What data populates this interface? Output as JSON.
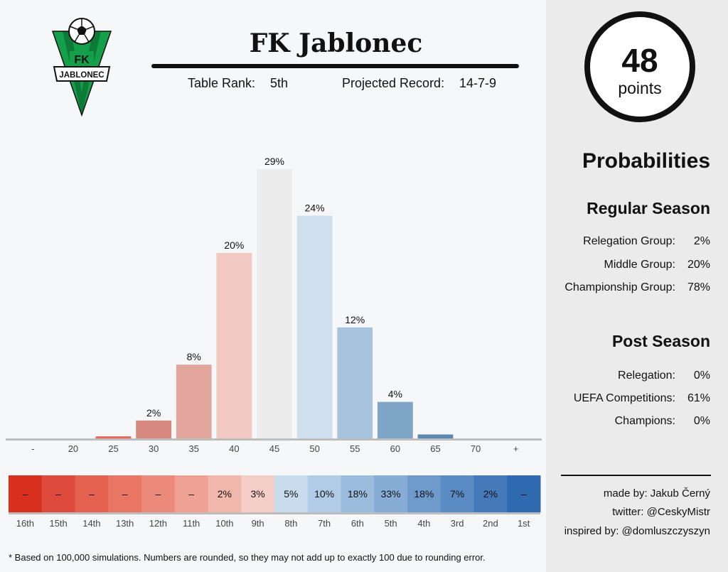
{
  "header": {
    "team_name": "FK Jablonec",
    "rank_label": "Table Rank:",
    "rank_value": "5th",
    "record_label": "Projected Record:",
    "record_value": "14-7-9"
  },
  "logo": {
    "text_top": "FK",
    "text_band": "JABLONEC",
    "colors": {
      "green": "#14a04a",
      "black": "#111111"
    }
  },
  "points": {
    "value": "48",
    "label": "points"
  },
  "probabilities": {
    "title": "Probabilities",
    "regular_season": {
      "title": "Regular Season",
      "rows": [
        {
          "label": "Relegation Group:",
          "value": "2%"
        },
        {
          "label": "Middle Group:",
          "value": "20%"
        },
        {
          "label": "Championship Group:",
          "value": "78%"
        }
      ]
    },
    "post_season": {
      "title": "Post Season",
      "rows": [
        {
          "label": "Relegation:",
          "value": "0%"
        },
        {
          "label": "UEFA Competitions:",
          "value": "61%"
        },
        {
          "label": "Champions:",
          "value": "0%"
        }
      ]
    }
  },
  "credits": {
    "made_by": "made by: Jakub Černý",
    "twitter": "twitter: @CeskyMistr",
    "inspired_by": "inspired by: @domluszczyszyn"
  },
  "footnote": "* Based on 100,000 simulations. Numbers are rounded, so they may not add up to exactly 100 due to rounding error.",
  "chart_data": [
    {
      "type": "bar",
      "categories": [
        "-",
        "20",
        "25",
        "30",
        "35",
        "40",
        "45",
        "50",
        "55",
        "60",
        "65",
        "70",
        "+"
      ],
      "values": [
        0,
        0,
        0.3,
        2,
        8,
        20,
        29,
        24,
        12,
        4,
        0.5,
        0,
        0
      ],
      "labels": [
        "",
        "",
        "",
        "2%",
        "8%",
        "20%",
        "29%",
        "24%",
        "12%",
        "4%",
        "",
        "",
        ""
      ],
      "colors": [
        "#d7301f",
        "#e04a3a",
        "#e8695b",
        "#d7897f",
        "#e3a69e",
        "#f2c8c3",
        "#ececec",
        "#cfdfee",
        "#a8c3dc",
        "#7fa6c7",
        "#5a88b2",
        "#3f72a3",
        "#2b63a0"
      ],
      "ylim": [
        0,
        29
      ],
      "xlabel": "",
      "ylabel": ""
    },
    {
      "type": "heatmap",
      "categories": [
        "16th",
        "15th",
        "14th",
        "13th",
        "12th",
        "11th",
        "10th",
        "9th",
        "8th",
        "7th",
        "6th",
        "5th",
        "4th",
        "3rd",
        "2nd",
        "1st"
      ],
      "labels": [
        "–",
        "–",
        "–",
        "–",
        "–",
        "–",
        "2%",
        "3%",
        "5%",
        "10%",
        "18%",
        "33%",
        "18%",
        "7%",
        "2%",
        "–"
      ],
      "colors": [
        "#d7301f",
        "#de4a3b",
        "#e4604f",
        "#e97664",
        "#ec8a7b",
        "#efa193",
        "#f2b7ab",
        "#f5cec7",
        "#c9dcee",
        "#b3cce6",
        "#9cbcde",
        "#87acd5",
        "#6f9bcc",
        "#5a8bc3",
        "#4479ba",
        "#2f6ab1"
      ]
    }
  ]
}
